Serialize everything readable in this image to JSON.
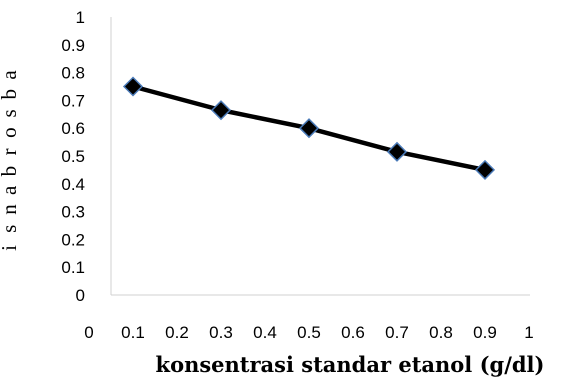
{
  "chart_data": {
    "type": "line",
    "title": "",
    "xlabel": "konsentrasi standar etanol (g/dl)",
    "ylabel": "absorbansi",
    "xlim": [
      0,
      1
    ],
    "ylim": [
      0,
      1
    ],
    "x_ticks": [
      "0",
      "0.1",
      "0.2",
      "0.3",
      "0.4",
      "0.5",
      "0.6",
      "0.7",
      "0.8",
      "0.9",
      "1"
    ],
    "y_ticks": [
      "0",
      "0.1",
      "0.2",
      "0.3",
      "0.4",
      "0.5",
      "0.6",
      "0.7",
      "0.8",
      "0.9",
      "1"
    ],
    "grid": false,
    "legend": "none",
    "series": [
      {
        "x": [
          0.1,
          0.3,
          0.5,
          0.7,
          0.9
        ],
        "y": [
          0.75,
          0.665,
          0.6,
          0.515,
          0.45
        ],
        "marker": "diamond",
        "color": "#000000",
        "marker_edge": "#4a7ab8"
      }
    ]
  }
}
